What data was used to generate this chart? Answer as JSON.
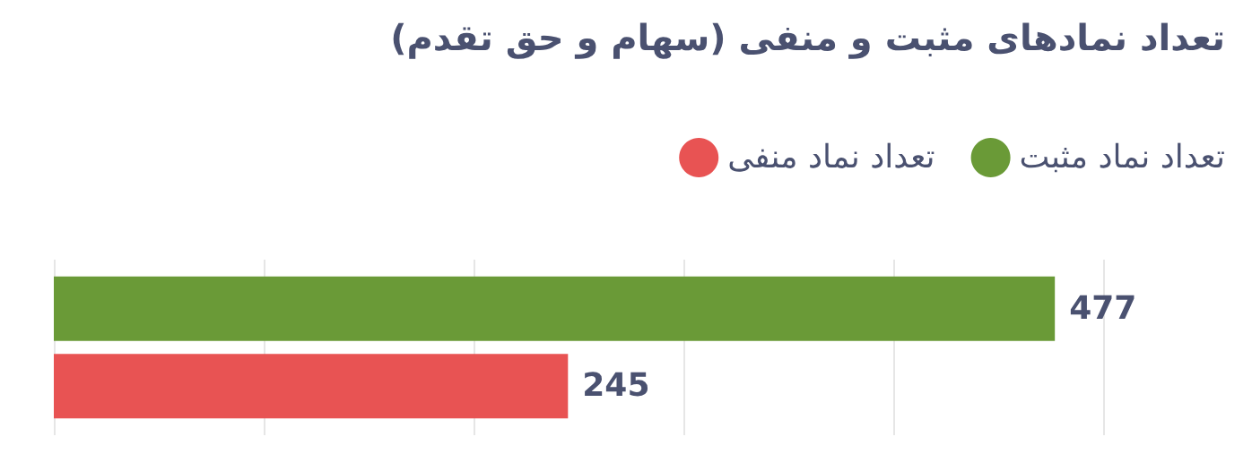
{
  "chart_data": {
    "type": "bar",
    "orientation": "horizontal",
    "title": "تعداد نمادهای مثبت و منفی (سهام و حق تقدم)",
    "categories": [
      null
    ],
    "series": [
      {
        "name": "تعداد نماد مثبت",
        "color": "#6a9a37",
        "values": [
          477
        ]
      },
      {
        "name": "تعداد نماد منفی",
        "color": "#e85353",
        "values": [
          245
        ]
      }
    ],
    "xlim": [
      0,
      500
    ],
    "xticks": [
      {
        "value": 0,
        "label": null
      },
      {
        "value": 100,
        "label": null
      },
      {
        "value": 200,
        "label": null
      },
      {
        "value": 300,
        "label": null
      },
      {
        "value": 400,
        "label": null
      },
      {
        "value": 500,
        "label": null
      }
    ],
    "grid": "x",
    "legend": "top right",
    "data_labels": true
  }
}
